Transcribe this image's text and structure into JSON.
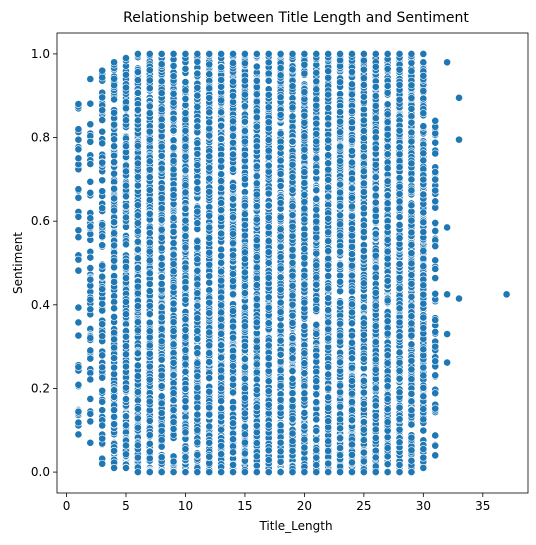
{
  "chart_data": {
    "type": "scatter",
    "title": "Relationship between Title Length and Sentiment",
    "xlabel": "Title_Length",
    "ylabel": "Sentiment",
    "xlim": [
      -0.8,
      38.8
    ],
    "ylim": [
      -0.05,
      1.05
    ],
    "xticks": [
      "0",
      "5",
      "10",
      "15",
      "20",
      "25",
      "30",
      "35"
    ],
    "yticks": [
      "0.0",
      "0.2",
      "0.4",
      "0.6",
      "0.8",
      "1.0"
    ],
    "grid": false,
    "legend": "none",
    "marker_color": "#1f77b4",
    "marker_edge": "#ffffff",
    "dense_columns": [
      {
        "x": 1,
        "ymin": 0.09,
        "ymax": 0.88,
        "n": 40
      },
      {
        "x": 2,
        "ymin": 0.07,
        "ymax": 0.94,
        "n": 60
      },
      {
        "x": 3,
        "ymin": 0.02,
        "ymax": 0.96,
        "n": 90
      },
      {
        "x": 4,
        "ymin": 0.01,
        "ymax": 0.98,
        "n": 200
      },
      {
        "x": 5,
        "ymin": 0.01,
        "ymax": 0.99,
        "n": 260
      },
      {
        "x": 6,
        "ymin": 0.0,
        "ymax": 1.0,
        "n": 300
      },
      {
        "x": 7,
        "ymin": 0.0,
        "ymax": 1.0,
        "n": 300
      },
      {
        "x": 8,
        "ymin": 0.0,
        "ymax": 1.0,
        "n": 300
      },
      {
        "x": 9,
        "ymin": 0.0,
        "ymax": 1.0,
        "n": 300
      },
      {
        "x": 10,
        "ymin": 0.0,
        "ymax": 1.0,
        "n": 300
      },
      {
        "x": 11,
        "ymin": 0.0,
        "ymax": 1.0,
        "n": 300
      },
      {
        "x": 12,
        "ymin": 0.0,
        "ymax": 1.0,
        "n": 300
      },
      {
        "x": 13,
        "ymin": 0.0,
        "ymax": 1.0,
        "n": 300
      },
      {
        "x": 14,
        "ymin": 0.0,
        "ymax": 1.0,
        "n": 300
      },
      {
        "x": 15,
        "ymin": 0.0,
        "ymax": 1.0,
        "n": 300
      },
      {
        "x": 16,
        "ymin": 0.0,
        "ymax": 1.0,
        "n": 300
      },
      {
        "x": 17,
        "ymin": 0.0,
        "ymax": 1.0,
        "n": 300
      },
      {
        "x": 18,
        "ymin": 0.0,
        "ymax": 1.0,
        "n": 300
      },
      {
        "x": 19,
        "ymin": 0.0,
        "ymax": 1.0,
        "n": 300
      },
      {
        "x": 20,
        "ymin": 0.0,
        "ymax": 1.0,
        "n": 300
      },
      {
        "x": 21,
        "ymin": 0.0,
        "ymax": 1.0,
        "n": 300
      },
      {
        "x": 22,
        "ymin": 0.0,
        "ymax": 1.0,
        "n": 300
      },
      {
        "x": 23,
        "ymin": 0.0,
        "ymax": 1.0,
        "n": 300
      },
      {
        "x": 24,
        "ymin": 0.0,
        "ymax": 1.0,
        "n": 300
      },
      {
        "x": 25,
        "ymin": 0.0,
        "ymax": 1.0,
        "n": 300
      },
      {
        "x": 26,
        "ymin": 0.0,
        "ymax": 1.0,
        "n": 300
      },
      {
        "x": 27,
        "ymin": 0.0,
        "ymax": 1.0,
        "n": 300
      },
      {
        "x": 28,
        "ymin": 0.0,
        "ymax": 1.0,
        "n": 300
      },
      {
        "x": 29,
        "ymin": 0.0,
        "ymax": 1.0,
        "n": 300
      },
      {
        "x": 30,
        "ymin": 0.01,
        "ymax": 1.0,
        "n": 260
      },
      {
        "x": 31,
        "ymin": 0.04,
        "ymax": 0.84,
        "n": 70
      }
    ],
    "outliers": [
      {
        "x": 32,
        "y": 0.98
      },
      {
        "x": 32,
        "y": 0.585
      },
      {
        "x": 32,
        "y": 0.425
      },
      {
        "x": 32,
        "y": 0.33
      },
      {
        "x": 32,
        "y": 0.262
      },
      {
        "x": 33,
        "y": 0.895
      },
      {
        "x": 33,
        "y": 0.795
      },
      {
        "x": 33,
        "y": 0.415
      },
      {
        "x": 37,
        "y": 0.425
      }
    ]
  }
}
